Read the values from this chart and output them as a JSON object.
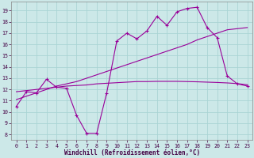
{
  "xlabel": "Windchill (Refroidissement éolien,°C)",
  "bg_color": "#cce8e8",
  "grid_color": "#aad4d4",
  "line_color": "#990099",
  "x_ticks": [
    0,
    1,
    2,
    3,
    4,
    5,
    6,
    7,
    8,
    9,
    10,
    11,
    12,
    13,
    14,
    15,
    16,
    17,
    18,
    19,
    20,
    21,
    22,
    23
  ],
  "y_ticks": [
    8,
    9,
    10,
    11,
    12,
    13,
    14,
    15,
    16,
    17,
    18,
    19
  ],
  "xlim": [
    -0.5,
    23.5
  ],
  "ylim": [
    7.5,
    19.8
  ],
  "series_main_x": [
    0,
    1,
    2,
    3,
    4,
    5,
    6,
    7,
    8,
    9,
    10,
    11,
    12,
    13,
    14,
    15,
    16,
    17,
    18,
    19,
    20,
    21,
    22,
    23
  ],
  "series_main_y": [
    10.5,
    11.8,
    11.7,
    12.9,
    12.2,
    12.1,
    9.7,
    8.1,
    8.1,
    11.7,
    16.3,
    17.0,
    16.5,
    17.2,
    18.5,
    17.7,
    18.9,
    19.2,
    19.3,
    17.5,
    16.6,
    13.2,
    12.5,
    12.3
  ],
  "series_rise_x": [
    0,
    1,
    2,
    3,
    4,
    5,
    6,
    7,
    8,
    9,
    10,
    11,
    12,
    13,
    14,
    15,
    16,
    17,
    18,
    19,
    20,
    21,
    22,
    23
  ],
  "series_rise_y": [
    11.1,
    11.4,
    11.7,
    12.0,
    12.3,
    12.5,
    12.7,
    13.0,
    13.3,
    13.6,
    13.9,
    14.2,
    14.5,
    14.8,
    15.1,
    15.4,
    15.7,
    16.0,
    16.4,
    16.7,
    17.0,
    17.3,
    17.4,
    17.5
  ],
  "series_flat_x": [
    0,
    1,
    2,
    3,
    4,
    5,
    6,
    7,
    8,
    9,
    10,
    11,
    12,
    13,
    14,
    15,
    16,
    17,
    18,
    19,
    20,
    21,
    22,
    23
  ],
  "series_flat_y": [
    11.8,
    11.9,
    12.0,
    12.1,
    12.2,
    12.3,
    12.35,
    12.4,
    12.5,
    12.55,
    12.6,
    12.65,
    12.7,
    12.7,
    12.72,
    12.72,
    12.72,
    12.7,
    12.68,
    12.65,
    12.62,
    12.58,
    12.52,
    12.42
  ]
}
